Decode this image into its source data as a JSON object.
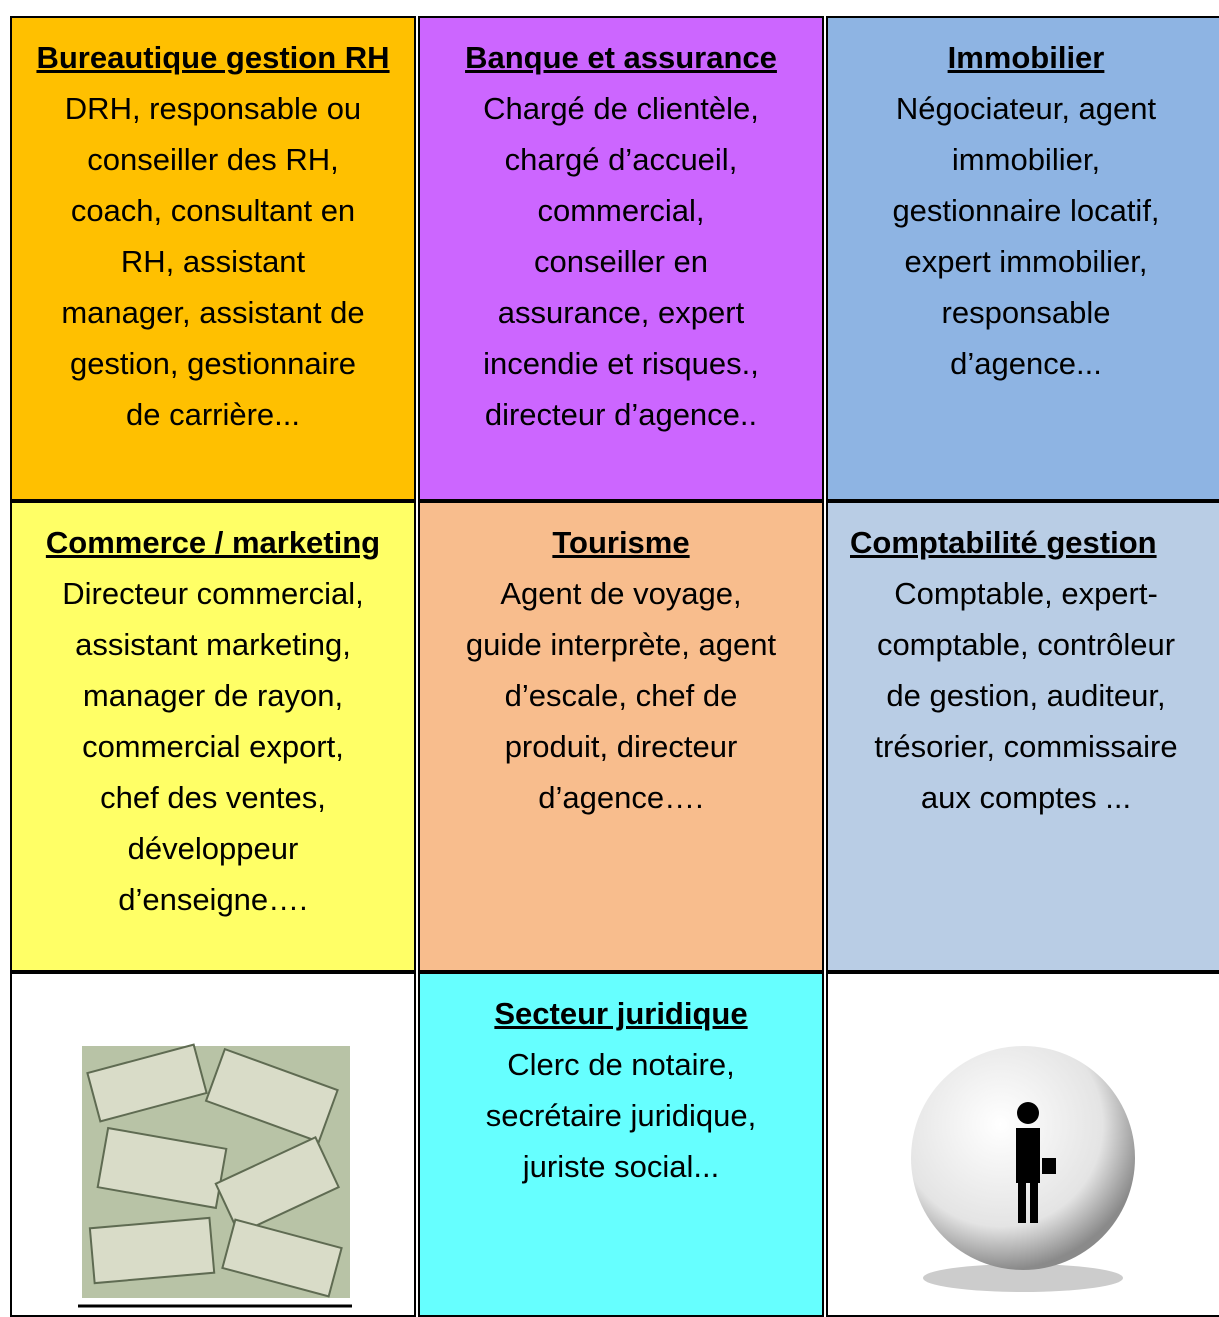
{
  "table": {
    "cells": [
      {
        "title": "Bureautique gestion RH",
        "lines": [
          "DRH, responsable ou",
          "conseiller des RH,",
          "coach, consultant en",
          "RH, assistant",
          "manager, assistant de",
          "gestion,  gestionnaire",
          "de carrière..."
        ]
      },
      {
        "title": "Banque et assurance",
        "lines": [
          "Chargé de clientèle,",
          "chargé d’accueil,",
          "commercial,",
          "conseiller en",
          "assurance, expert",
          "incendie et risques.,",
          "directeur d’agence.."
        ]
      },
      {
        "title": "Immobilier",
        "lines": [
          "Négociateur, agent",
          "immobilier,",
          "gestionnaire locatif,",
          "expert immobilier,",
          "responsable",
          "d’agence..."
        ]
      },
      {
        "title": "Commerce / marketing",
        "lines": [
          "Directeur commercial,",
          "assistant marketing,",
          "manager de rayon,",
          "commercial export,",
          "chef des ventes,",
          "développeur",
          "d’enseigne…."
        ]
      },
      {
        "title": "Tourisme",
        "lines": [
          "Agent de voyage,",
          "guide interprète, agent",
          "d’escale, chef de",
          "produit, directeur",
          "d’agence…."
        ]
      },
      {
        "title": "Comptabilité gestion",
        "lines": [
          "Comptable, expert-",
          "comptable, contrôleur",
          "de gestion, auditeur,",
          "trésorier, commissaire",
          "aux comptes  ..."
        ]
      },
      {
        "title": "Secteur juridique",
        "lines": [
          "Clerc de notaire,",
          "secrétaire juridique,",
          "juriste social..."
        ]
      }
    ]
  }
}
